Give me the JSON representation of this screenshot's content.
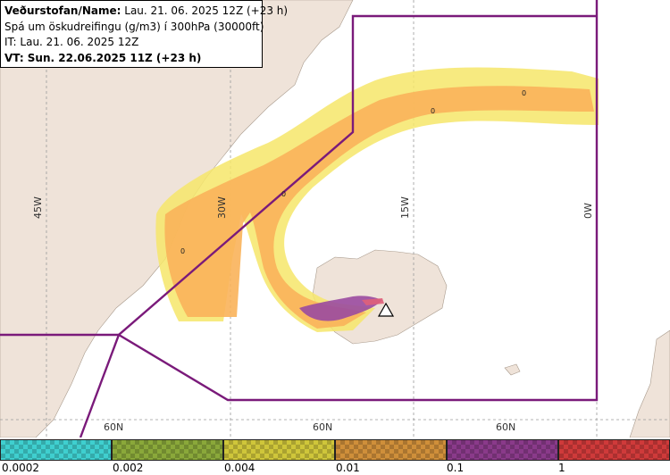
{
  "info": {
    "line1_label": "Veðurstofan/Name:",
    "line1_value": " Lau. 21. 06. 2025 12Z (+23 h)",
    "line2": "Spá um öskudreifingu (g/m3) í 300hPa (30000ft)",
    "line3": "IT: Lau. 21. 06. 2025 12Z",
    "line4": "VT: Sun. 22.06.2025 11Z (+23 h)"
  },
  "grid_labels": {
    "lon": [
      "45W",
      "30W",
      "15W",
      "0W"
    ],
    "lat": [
      "60N",
      "60N",
      "60N"
    ]
  },
  "contour_labels": [
    "0",
    "0",
    "0",
    "0"
  ],
  "legend": {
    "ticks": [
      "0.0002",
      "0.002",
      "0.004",
      "0.01",
      "0.1",
      "1"
    ],
    "colors": [
      "#3fcfcf",
      "#8aa83a",
      "#cfc63a",
      "#cf8f3a",
      "#8a3a8a",
      "#cf3a3a"
    ]
  },
  "colors": {
    "land": "#efe3d9",
    "ocean": "#ffffff",
    "boundary": "#7a1a7a",
    "ash_light": "#f6e66a",
    "ash_orange": "#f9b25a",
    "ash_purple": "#9a4aa0"
  }
}
